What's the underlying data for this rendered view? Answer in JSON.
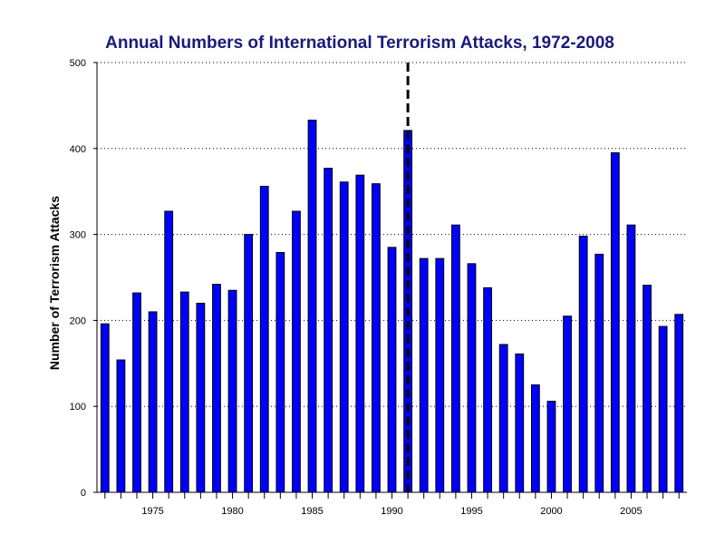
{
  "chart_data": {
    "type": "bar",
    "title": "Annual Numbers of International Terrorism Attacks, 1972-2008",
    "xlabel": "",
    "ylabel": "Number of Terrorism Attacks",
    "x": [
      1972,
      1973,
      1974,
      1975,
      1976,
      1977,
      1978,
      1979,
      1980,
      1981,
      1982,
      1983,
      1984,
      1985,
      1986,
      1987,
      1988,
      1989,
      1990,
      1991,
      1992,
      1993,
      1994,
      1995,
      1996,
      1997,
      1998,
      1999,
      2000,
      2001,
      2002,
      2003,
      2004,
      2005,
      2006,
      2007,
      2008
    ],
    "values": [
      196,
      154,
      232,
      210,
      327,
      233,
      220,
      242,
      235,
      300,
      356,
      279,
      327,
      433,
      377,
      361,
      369,
      359,
      285,
      421,
      272,
      272,
      311,
      266,
      238,
      172,
      161,
      125,
      106,
      205,
      298,
      277,
      395,
      311,
      241,
      193,
      207
    ],
    "ylim": [
      0,
      500
    ],
    "xlim": [
      1971.5,
      2008.5
    ],
    "y_ticks": [
      0,
      100,
      200,
      300,
      400,
      500
    ],
    "x_tick_labels": [
      1975,
      1980,
      1985,
      1990,
      1995,
      2000,
      2005
    ],
    "grid": "horizontal dotted",
    "marker_line_x": 1991,
    "colors": {
      "bar_fill": "#0000ff",
      "bar_stroke": "#000000",
      "title": "#1a1a7a",
      "marker_line": "#000000"
    }
  }
}
